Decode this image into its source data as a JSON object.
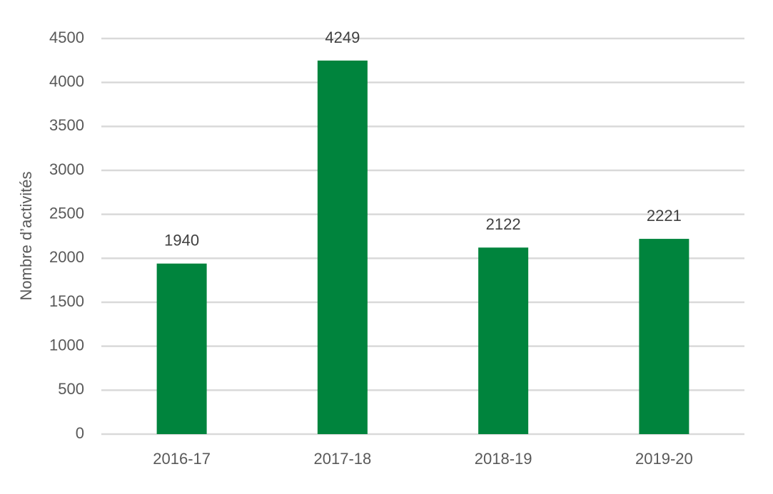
{
  "chart_data": {
    "type": "bar",
    "y_label": "Nombre d’activités",
    "categories": [
      "2016-17",
      "2017-18",
      "2018-19",
      "2019-20"
    ],
    "values": [
      1940,
      4249,
      2122,
      2221
    ],
    "color": "#00843d",
    "ylim": [
      0,
      4500
    ],
    "yticks": [
      0,
      500,
      1000,
      1500,
      2000,
      2500,
      3000,
      3500,
      4000,
      4500
    ],
    "grid": true
  }
}
